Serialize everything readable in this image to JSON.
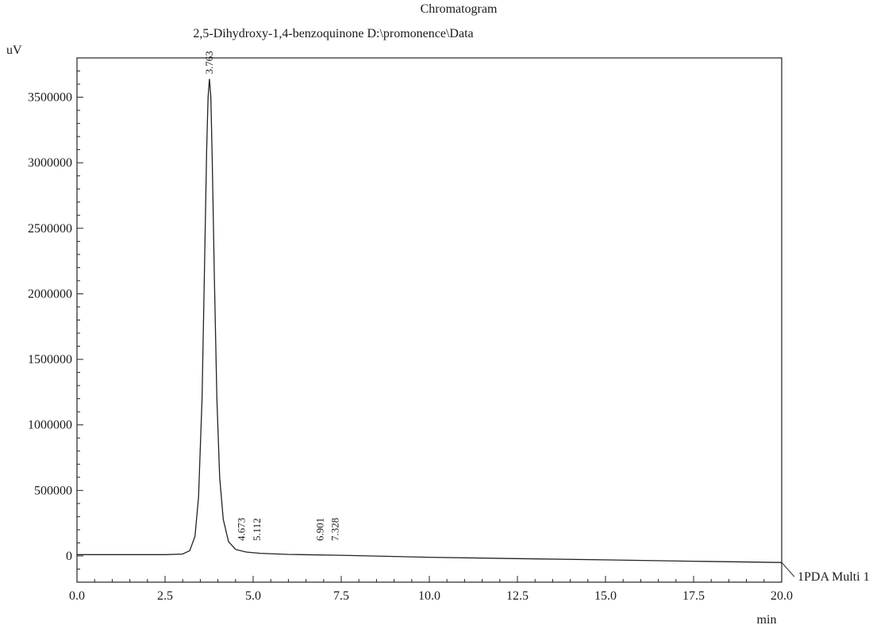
{
  "chart_data": {
    "type": "line",
    "title": "Chromatogram",
    "subtitle": "2,5-Dihydroxy-1,4-benzoquinone D:\\promonence\\Data",
    "xlabel": "min",
    "ylabel": "uV",
    "xlim": [
      0,
      20
    ],
    "ylim": [
      -200000,
      3800000
    ],
    "x_ticks": [
      0.0,
      2.5,
      5.0,
      7.5,
      10.0,
      12.5,
      15.0,
      17.5,
      20.0
    ],
    "x_tick_labels": [
      "0.0",
      "2.5",
      "5.0",
      "7.5",
      "10.0",
      "12.5",
      "15.0",
      "17.5",
      "20.0"
    ],
    "y_ticks": [
      0,
      500000,
      1000000,
      1500000,
      2000000,
      2500000,
      3000000,
      3500000
    ],
    "y_tick_labels": [
      "0",
      "500000",
      "1000000",
      "1500000",
      "2000000",
      "2500000",
      "3000000",
      "3500000"
    ],
    "grid": false,
    "series": [
      {
        "name": "1PDA Multi 1",
        "color": "#222222",
        "x": [
          0.0,
          2.5,
          3.0,
          3.2,
          3.35,
          3.45,
          3.55,
          3.62,
          3.68,
          3.72,
          3.76,
          3.8,
          3.84,
          3.9,
          3.97,
          4.05,
          4.15,
          4.3,
          4.5,
          4.8,
          5.2,
          6.0,
          7.5,
          10.0,
          12.5,
          15.0,
          17.5,
          20.0
        ],
        "y": [
          10000,
          10000,
          15000,
          40000,
          150000,
          450000,
          1200000,
          2200000,
          3100000,
          3500000,
          3640000,
          3500000,
          3000000,
          2100000,
          1200000,
          600000,
          280000,
          110000,
          50000,
          30000,
          20000,
          12000,
          5000,
          -10000,
          -20000,
          -30000,
          -40000,
          -50000
        ]
      }
    ],
    "peaks": [
      {
        "rt": 3.763,
        "label": "3.763",
        "y": 3640000
      },
      {
        "rt": 4.673,
        "label": "4.673",
        "y": 50000
      },
      {
        "rt": 5.112,
        "label": "5.112",
        "y": 25000
      },
      {
        "rt": 6.901,
        "label": "6.901",
        "y": 8000
      },
      {
        "rt": 7.328,
        "label": "7.328",
        "y": 6000
      }
    ],
    "legend": "right"
  }
}
